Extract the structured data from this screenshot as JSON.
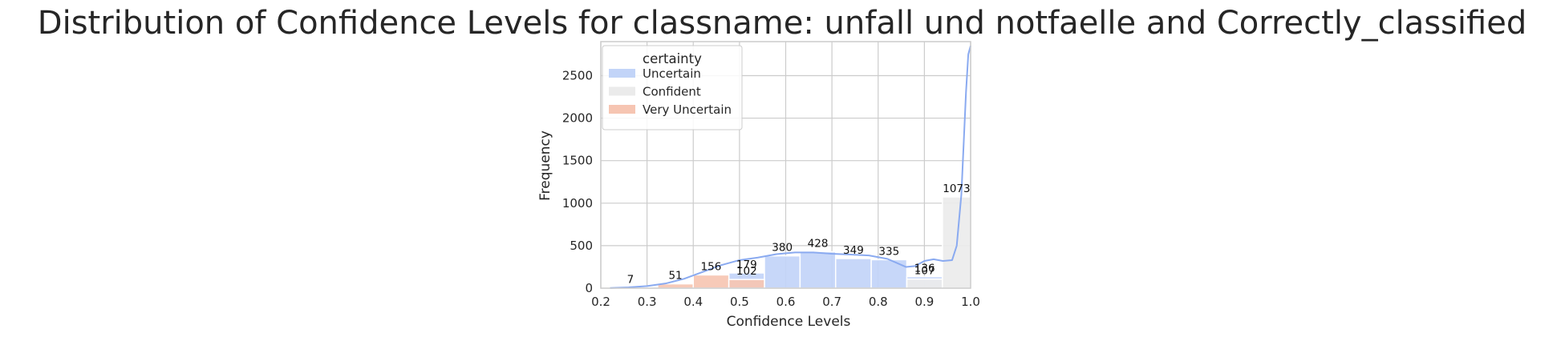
{
  "chart_data": {
    "type": "bar",
    "title": "Distribution of Confidence Levels for classname: unfall und notfaelle and Correctly_classified",
    "xlabel": "Confidence Levels",
    "ylabel": "Frequency",
    "xlim": [
      0.2,
      1.0
    ],
    "ylim": [
      0,
      2900
    ],
    "x_ticks": [
      "0.2",
      "0.3",
      "0.4",
      "0.5",
      "0.6",
      "0.7",
      "0.8",
      "0.9",
      "1.0"
    ],
    "y_ticks": [
      "0",
      "500",
      "1000",
      "1500",
      "2000",
      "2500"
    ],
    "grid": true,
    "legend_position": "top-left",
    "legend_title": "certainty",
    "series": [
      {
        "name": "Uncertain",
        "color": "#c2d4f8",
        "bars": [
          {
            "x0": 0.477,
            "x1": 0.554,
            "value": 179,
            "label": "179"
          },
          {
            "x0": 0.554,
            "x1": 0.631,
            "value": 380,
            "label": "380"
          },
          {
            "x0": 0.631,
            "x1": 0.708,
            "value": 428,
            "label": "428"
          },
          {
            "x0": 0.708,
            "x1": 0.785,
            "value": 349,
            "label": "349"
          },
          {
            "x0": 0.785,
            "x1": 0.862,
            "value": 335,
            "label": "335"
          },
          {
            "x0": 0.862,
            "x1": 0.939,
            "value": 136,
            "label": "136"
          }
        ]
      },
      {
        "name": "Confident",
        "color": "#ebebeb",
        "bars": [
          {
            "x0": 0.862,
            "x1": 0.939,
            "value": 107,
            "label": "107"
          },
          {
            "x0": 0.939,
            "x1": 1.0,
            "value": 1073,
            "label": "1073"
          }
        ]
      },
      {
        "name": "Very Uncertain",
        "color": "#f6c5b2",
        "bars": [
          {
            "x0": 0.205,
            "x1": 0.323,
            "value": 7,
            "label": "7"
          },
          {
            "x0": 0.323,
            "x1": 0.4,
            "value": 51,
            "label": "51"
          },
          {
            "x0": 0.4,
            "x1": 0.477,
            "value": 156,
            "label": "156"
          },
          {
            "x0": 0.477,
            "x1": 0.554,
            "value": 102,
            "label": "102"
          }
        ]
      }
    ],
    "kde": {
      "color": "#8aaaf0",
      "x": [
        0.22,
        0.26,
        0.3,
        0.34,
        0.38,
        0.42,
        0.46,
        0.5,
        0.54,
        0.58,
        0.62,
        0.66,
        0.7,
        0.74,
        0.78,
        0.82,
        0.86,
        0.88,
        0.9,
        0.92,
        0.94,
        0.96,
        0.97,
        0.98,
        0.985,
        0.99,
        0.995,
        1.0
      ],
      "y": [
        2,
        10,
        25,
        55,
        110,
        190,
        270,
        330,
        360,
        400,
        420,
        420,
        405,
        395,
        385,
        345,
        250,
        260,
        320,
        340,
        320,
        330,
        500,
        1100,
        1700,
        2300,
        2750,
        2850
      ]
    }
  }
}
